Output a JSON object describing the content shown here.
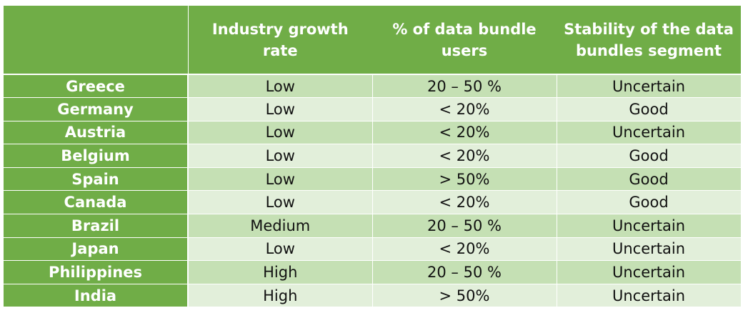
{
  "table": {
    "headers": [
      "",
      "Industry growth rate",
      "% of data bundle users",
      "Stability of the data bundles segment"
    ],
    "rows": [
      {
        "country": "Greece",
        "growth": "Low",
        "users": "20 – 50 %",
        "stability": "Uncertain"
      },
      {
        "country": "Germany",
        "growth": "Low",
        "users": "< 20%",
        "stability": "Good"
      },
      {
        "country": "Austria",
        "growth": "Low",
        "users": "< 20%",
        "stability": "Uncertain"
      },
      {
        "country": "Belgium",
        "growth": "Low",
        "users": "< 20%",
        "stability": "Good"
      },
      {
        "country": "Spain",
        "growth": "Low",
        "users": "> 50%",
        "stability": "Good"
      },
      {
        "country": "Canada",
        "growth": "Low",
        "users": "< 20%",
        "stability": "Good"
      },
      {
        "country": "Brazil",
        "growth": "Medium",
        "users": "20 – 50 %",
        "stability": "Uncertain"
      },
      {
        "country": "Japan",
        "growth": "Low",
        "users": "< 20%",
        "stability": "Uncertain"
      },
      {
        "country": "Philippines",
        "growth": "High",
        "users": "20 – 50 %",
        "stability": "Uncertain"
      },
      {
        "country": "India",
        "growth": "High",
        "users": "> 50%",
        "stability": "Uncertain"
      }
    ]
  },
  "colors": {
    "header_green": "#70ad47",
    "row_dark": "#c5e0b4",
    "row_light": "#e2efda"
  }
}
